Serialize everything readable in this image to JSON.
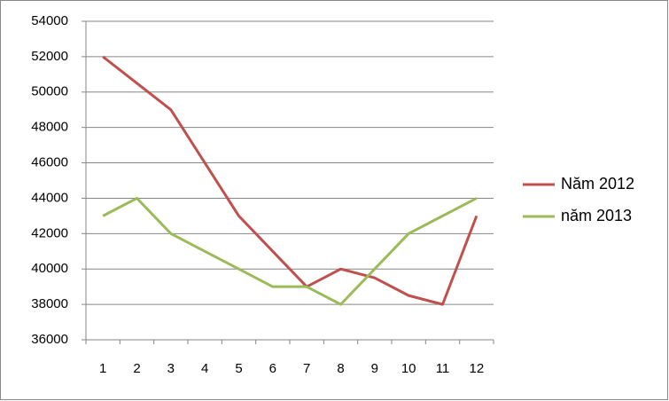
{
  "chart_data": {
    "type": "line",
    "categories": [
      "1",
      "2",
      "3",
      "4",
      "5",
      "6",
      "7",
      "8",
      "9",
      "10",
      "11",
      "12"
    ],
    "series": [
      {
        "name": "Năm 2012",
        "color": "#c0504d",
        "values": [
          52000,
          50500,
          49000,
          46000,
          43000,
          41000,
          39000,
          40000,
          39500,
          38500,
          38000,
          43000
        ]
      },
      {
        "name": "năm 2013",
        "color": "#9bbb59",
        "values": [
          43000,
          44000,
          42000,
          41000,
          40000,
          39000,
          39000,
          38000,
          40000,
          42000,
          43000,
          44000
        ]
      }
    ],
    "ylim": [
      36000,
      54000
    ],
    "yticks": [
      36000,
      38000,
      40000,
      42000,
      44000,
      46000,
      48000,
      50000,
      52000,
      54000
    ],
    "grid": true,
    "legend": "right"
  }
}
